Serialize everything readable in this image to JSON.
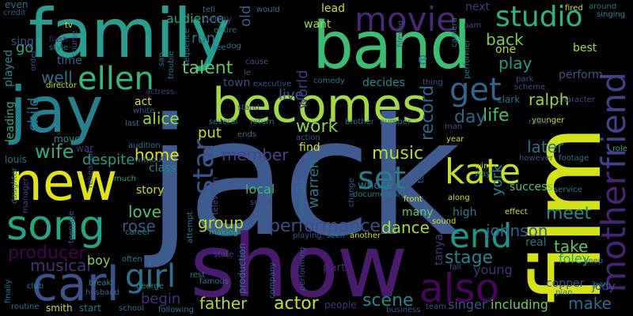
{
  "words": [
    {
      "text": "jack",
      "color": "#3e5a8e"
    },
    {
      "text": "film",
      "color": "#d4e21a"
    },
    {
      "text": "show",
      "color": "#481b6d"
    },
    {
      "text": "family",
      "color": "#2a9d8f"
    },
    {
      "text": "band",
      "color": "#3fbc73"
    },
    {
      "text": "jay",
      "color": "#27808e"
    },
    {
      "text": "becomes",
      "color": "#a2d947"
    },
    {
      "text": "new",
      "color": "#dde318"
    },
    {
      "text": "carl",
      "color": "#3b528b"
    },
    {
      "text": "song",
      "color": "#25a584"
    },
    {
      "text": "movie",
      "color": "#482878"
    },
    {
      "text": "mother",
      "color": "#482475"
    },
    {
      "text": "friend",
      "color": "#404387"
    },
    {
      "text": "studio",
      "color": "#2fb47c"
    },
    {
      "text": "ellen",
      "color": "#35b779"
    },
    {
      "text": "kate",
      "color": "#c2df23"
    },
    {
      "text": "also",
      "color": "#46075a"
    },
    {
      "text": "girl",
      "color": "#2c728e"
    },
    {
      "text": "end",
      "color": "#1f978b"
    },
    {
      "text": "get",
      "color": "#31668e"
    },
    {
      "text": "set",
      "color": "#287c8e"
    },
    {
      "text": "star",
      "color": "#3a548c"
    },
    {
      "text": "back",
      "color": "#7ad151"
    },
    {
      "text": "wife",
      "color": "#29af7f"
    },
    {
      "text": "performance",
      "color": "#3d4d8a"
    },
    {
      "text": "talent",
      "color": "#5ec962"
    },
    {
      "text": "record",
      "color": "#31678e"
    },
    {
      "text": "work",
      "color": "#8ed645"
    },
    {
      "text": "music",
      "color": "#b5de2b"
    },
    {
      "text": "group",
      "color": "#b8de29"
    },
    {
      "text": "stage",
      "color": "#25858e"
    },
    {
      "text": "meet",
      "color": "#21918c"
    },
    {
      "text": "life",
      "color": "#48c16e"
    },
    {
      "text": "love",
      "color": "#52c569"
    },
    {
      "text": "rose",
      "color": "#3a548c"
    },
    {
      "text": "producer",
      "color": "#440154"
    },
    {
      "text": "musical",
      "color": "#46337e"
    },
    {
      "text": "scene",
      "color": "#238a8d"
    },
    {
      "text": "father",
      "color": "#addc30"
    },
    {
      "text": "actor",
      "color": "#cae11f"
    },
    {
      "text": "member",
      "color": "#3f4889"
    },
    {
      "text": "dance",
      "color": "#a8db34"
    },
    {
      "text": "johnson",
      "color": "#33638d"
    },
    {
      "text": "make",
      "color": "#2f6c8e"
    },
    {
      "text": "later",
      "color": "#2d718e"
    },
    {
      "text": "home",
      "color": "#dfe318"
    },
    {
      "text": "alice",
      "color": "#95d840"
    },
    {
      "text": "story",
      "color": "#c8e020"
    },
    {
      "text": "take",
      "color": "#5ec962"
    },
    {
      "text": "ralph",
      "color": "#9bd93c"
    },
    {
      "text": "day",
      "color": "#31668e"
    },
    {
      "text": "play",
      "color": "#1f9f88"
    },
    {
      "text": "well",
      "color": "#2e6f8e"
    },
    {
      "text": "go",
      "color": "#29af7f"
    },
    {
      "text": "audience",
      "color": "#22a884"
    },
    {
      "text": "live",
      "color": "#365c8d"
    },
    {
      "text": "world",
      "color": "#443983"
    },
    {
      "text": "old",
      "color": "#365d8d"
    },
    {
      "text": "put",
      "color": "#c5e021"
    },
    {
      "text": "run",
      "color": "#2d708e"
    },
    {
      "text": "child",
      "color": "#2c728e"
    },
    {
      "text": "begin",
      "color": "#46327e"
    },
    {
      "text": "boy",
      "color": "#8bd646"
    },
    {
      "text": "local",
      "color": "#3fbc73"
    },
    {
      "text": "warren",
      "color": "#2a788e"
    },
    {
      "text": "york",
      "color": "#23888e"
    },
    {
      "text": "young",
      "color": "#472f7d"
    },
    {
      "text": "singer",
      "color": "#3b518b"
    },
    {
      "text": "including",
      "color": "#6ccd5a"
    },
    {
      "text": "copper",
      "color": "#3d4e8a"
    },
    {
      "text": "jody",
      "color": "#3b528b"
    },
    {
      "text": "foley",
      "color": "#20a386"
    },
    {
      "text": "real",
      "color": "#2c728e"
    },
    {
      "text": "tanya",
      "color": "#453781"
    },
    {
      "text": "part",
      "color": "#482576"
    },
    {
      "text": "many",
      "color": "#6ece58"
    },
    {
      "text": "high",
      "color": "#27808e"
    },
    {
      "text": "success",
      "color": "#54c568"
    },
    {
      "text": "find",
      "color": "#d0e11c"
    },
    {
      "text": "decides",
      "color": "#23898e"
    },
    {
      "text": "want",
      "color": "#a5db36"
    },
    {
      "text": "lead",
      "color": "#cae11f"
    },
    {
      "text": "one",
      "color": "#b2dd2d"
    },
    {
      "text": "best",
      "color": "#a0da39"
    },
    {
      "text": "perform",
      "color": "#3b528b"
    },
    {
      "text": "act",
      "color": "#d2e21b"
    },
    {
      "text": "played",
      "color": "#238a8d"
    },
    {
      "text": "leading",
      "color": "#27ad81"
    },
    {
      "text": "time",
      "color": "#33638d"
    },
    {
      "text": "town",
      "color": "#3e4a89"
    },
    {
      "text": "class",
      "color": "#24868e"
    },
    {
      "text": "sing",
      "color": "#3b528b"
    },
    {
      "text": "next",
      "color": "#453882"
    },
    {
      "text": "even",
      "color": "#2c728e"
    },
    {
      "text": "credit",
      "color": "#3b528b"
    },
    {
      "text": "style",
      "color": "#2c728e"
    },
    {
      "text": "flash",
      "color": "#481f70"
    },
    {
      "text": "penny",
      "color": "#472d7b"
    },
    {
      "text": "entire",
      "color": "#2f6c8e"
    },
    {
      "text": "dog",
      "color": "#2e6e8e"
    },
    {
      "text": "tell",
      "color": "#31688e"
    },
    {
      "text": "see",
      "color": "#2a788e"
    },
    {
      "text": "director",
      "color": "#bddf26"
    },
    {
      "text": "actress",
      "color": "#453581"
    },
    {
      "text": "audition",
      "color": "#2e6f8e"
    },
    {
      "text": "without",
      "color": "#2f6b8e"
    },
    {
      "text": "war",
      "color": "#453882"
    },
    {
      "text": "move",
      "color": "#21918c"
    },
    {
      "text": "despite",
      "color": "#1fa188"
    },
    {
      "text": "much",
      "color": "#22a785"
    },
    {
      "text": "louis",
      "color": "#2c728e"
    },
    {
      "text": "manager",
      "color": "#3f4788"
    },
    {
      "text": "daughter",
      "color": "#2d708e"
    },
    {
      "text": "rehearsal",
      "color": "#3e4989"
    },
    {
      "text": "career",
      "color": "#23888e"
    },
    {
      "text": "often",
      "color": "#287d8e"
    },
    {
      "text": "husband",
      "color": "#34608d"
    },
    {
      "text": "break",
      "color": "#238a8d"
    },
    {
      "text": "club",
      "color": "#26828e"
    },
    {
      "text": "smith",
      "color": "#cae11f"
    },
    {
      "text": "start",
      "color": "#2a768e"
    },
    {
      "text": "school",
      "color": "#2d718e"
    },
    {
      "text": "following",
      "color": "#2a788e"
    },
    {
      "text": "famous",
      "color": "#2c728e"
    },
    {
      "text": "george",
      "color": "#21918c"
    },
    {
      "text": "making",
      "color": "#25ac82"
    },
    {
      "text": "state",
      "color": "#3f4788"
    },
    {
      "text": "rest",
      "color": "#2c728e"
    },
    {
      "text": "production",
      "color": "#2e6e8e"
    },
    {
      "text": "company",
      "color": "#2f6c8e"
    },
    {
      "text": "performing",
      "color": "#3b528b"
    },
    {
      "text": "playing",
      "color": "#3b528b"
    },
    {
      "text": "another",
      "color": "#cde11d"
    },
    {
      "text": "people",
      "color": "#46327e"
    },
    {
      "text": "business",
      "color": "#3b528b"
    },
    {
      "text": "team",
      "color": "#3b528b"
    },
    {
      "text": "sound",
      "color": "#d8e219"
    },
    {
      "text": "effect",
      "color": "#cde11d"
    },
    {
      "text": "plan",
      "color": "#2c728e"
    },
    {
      "text": "keep",
      "color": "#2a788e"
    },
    {
      "text": "fired",
      "color": "#c8e020"
    },
    {
      "text": "around",
      "color": "#2a788e"
    },
    {
      "text": "singing",
      "color": "#24868e"
    },
    {
      "text": "camera",
      "color": "#2c728e"
    },
    {
      "text": "pam",
      "color": "#3b528b"
    },
    {
      "text": "character",
      "color": "#3e4c8a"
    },
    {
      "text": "younger",
      "color": "#cde11d"
    },
    {
      "text": "role",
      "color": "#29af7f"
    },
    {
      "text": "however",
      "color": "#3b528b"
    },
    {
      "text": "footage",
      "color": "#2c728e"
    },
    {
      "text": "service",
      "color": "#2a788e"
    },
    {
      "text": "clark",
      "color": "#2c728e"
    },
    {
      "text": "radio",
      "color": "#3b528b"
    },
    {
      "text": "scheme",
      "color": "#3b528b"
    },
    {
      "text": "park",
      "color": "#3b528b"
    },
    {
      "text": "win",
      "color": "#d8e219"
    },
    {
      "text": "way",
      "color": "#26828e"
    },
    {
      "text": "along",
      "color": "#cde11d"
    },
    {
      "text": "front",
      "color": "#cde11d"
    },
    {
      "text": "tour",
      "color": "#3b528b"
    },
    {
      "text": "year",
      "color": "#c8e020"
    },
    {
      "text": "man",
      "color": "#3b528b"
    },
    {
      "text": "brother",
      "color": "#2c728e"
    },
    {
      "text": "number",
      "color": "#2c728e"
    },
    {
      "text": "thing",
      "color": "#3b528b"
    },
    {
      "text": "action",
      "color": "#3b528b"
    },
    {
      "text": "several",
      "color": "#2c728e"
    },
    {
      "text": "return",
      "color": "#2c728e"
    },
    {
      "text": "executive",
      "color": "#3b528b"
    },
    {
      "text": "comedy",
      "color": "#2c728e"
    },
    {
      "text": "cause",
      "color": "#3b528b"
    },
    {
      "text": "whose",
      "color": "#2a788e"
    },
    {
      "text": "documentary",
      "color": "#2a788e"
    },
    {
      "text": "eventually",
      "color": "#2c728e"
    },
    {
      "text": "television",
      "color": "#3b528b"
    },
    {
      "text": "seen",
      "color": "#2c728e"
    },
    {
      "text": "attempt",
      "color": "#2c728e"
    },
    {
      "text": "finally",
      "color": "#2c728e"
    },
    {
      "text": "routine",
      "color": "#2c728e"
    },
    {
      "text": "teenage",
      "color": "#3b528b"
    },
    {
      "text": "last",
      "color": "#2c728e"
    },
    {
      "text": "white",
      "color": "#3b528b"
    },
    {
      "text": "order",
      "color": "#3b528b"
    },
    {
      "text": "tv",
      "color": "#d8e219"
    },
    {
      "text": "course",
      "color": "#3b528b"
    },
    {
      "text": "would",
      "color": "#2c728e"
    },
    {
      "text": "filming",
      "color": "#3b528b"
    },
    {
      "text": "performer",
      "color": "#2c728e"
    },
    {
      "text": "change",
      "color": "#3b528b"
    },
    {
      "text": "fall",
      "color": "#3b528b"
    },
    {
      "text": "san",
      "color": "#2c728e"
    },
    {
      "text": "sequence",
      "color": "#2c728e"
    },
    {
      "text": "trouble",
      "color": "#2c728e"
    },
    {
      "text": "le",
      "color": "#3b528b"
    },
    {
      "text": "e",
      "color": "#2c728e"
    },
    {
      "text": "pan",
      "color": "#2c728e"
    },
    {
      "text": "stand",
      "color": "#3b528b"
    },
    {
      "text": "ends",
      "color": "#2c728e"
    },
    {
      "text": "scout",
      "color": "#3b528b"
    }
  ]
}
